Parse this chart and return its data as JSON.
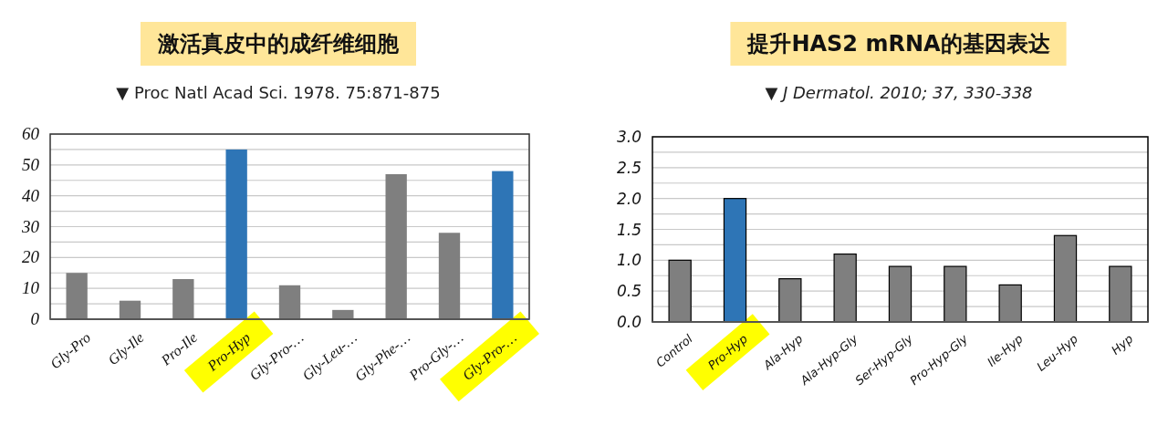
{
  "chart_data": [
    {
      "type": "bar",
      "title": "激活真皮中的成纤维细胞",
      "subtitle": "▼ Proc Natl Acad Sci. 1978. 75:871-875",
      "categories": [
        "Gly-Pro",
        "Gly-Ile",
        "Pro-Ile",
        "Pro-Hyp",
        "Gly-Pro-…",
        "Gly-Leu-…",
        "Gly-Phe-…",
        "Pro-Gly-…",
        "Gly-Pro-…"
      ],
      "values": [
        15,
        6,
        13,
        55,
        11,
        3,
        47,
        28,
        48
      ],
      "colors": [
        "#7f7f7f",
        "#7f7f7f",
        "#7f7f7f",
        "#2e75b6",
        "#7f7f7f",
        "#7f7f7f",
        "#7f7f7f",
        "#7f7f7f",
        "#2e75b6"
      ],
      "ylim": [
        0,
        60
      ],
      "yticks": [
        0,
        {
          "value": 5,
          "label": null
        },
        10,
        {
          "value": 15,
          "label": null
        },
        20,
        {
          "value": 25,
          "label": null
        },
        30,
        {
          "value": 35,
          "label": null
        },
        40,
        {
          "value": 45,
          "label": null
        },
        50,
        {
          "value": 55,
          "label": null
        },
        60
      ],
      "grid": "y"
    },
    {
      "type": "bar",
      "title": "提升HAS2 mRNA的基因表达",
      "subtitle": "▼ J Dermatol. 2010; 37, 330-338",
      "categories": [
        "Control",
        "Pro-Hyp",
        "Ala-Hyp",
        "Ala-Hyp-Gly",
        "Ser-Hyp-Gly",
        "Pro-Hyp-Gly",
        "Ile-Hyp",
        "Leu-Hyp",
        "Hyp"
      ],
      "values": [
        1.0,
        2.0,
        0.7,
        1.1,
        0.9,
        0.9,
        0.6,
        1.4,
        0.9
      ],
      "colors": [
        "#7f7f7f",
        "#2e75b6",
        "#7f7f7f",
        "#7f7f7f",
        "#7f7f7f",
        "#7f7f7f",
        "#7f7f7f",
        "#7f7f7f",
        "#7f7f7f"
      ],
      "ylim": [
        0,
        3
      ],
      "yticks": [
        {
          "value": 0,
          "label": "0.0"
        },
        {
          "value": 0.25,
          "label": null
        },
        {
          "value": 0.5,
          "label": "0.5"
        },
        {
          "value": 0.75,
          "label": null
        },
        {
          "value": 1,
          "label": "1.0"
        },
        {
          "value": 1.25,
          "label": null
        },
        {
          "value": 1.5,
          "label": "1.5"
        },
        {
          "value": 1.75,
          "label": null
        },
        {
          "value": 2,
          "label": "2.0"
        },
        {
          "value": 2.25,
          "label": null
        },
        {
          "value": 2.5,
          "label": "2.5"
        },
        {
          "value": 2.75,
          "label": null
        },
        {
          "value": 3,
          "label": "3.0"
        }
      ],
      "grid": "y"
    }
  ]
}
